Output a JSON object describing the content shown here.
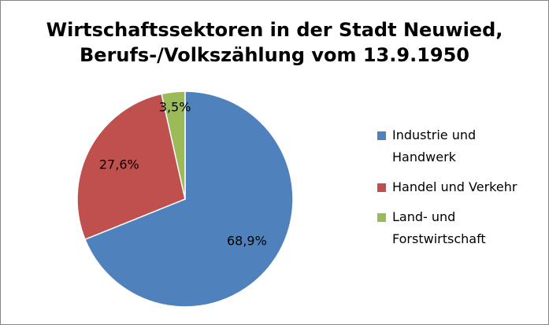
{
  "chart_data": {
    "type": "pie",
    "title": [
      "Wirtschaftssektoren in der Stadt Neuwied,",
      "Berufs-/Volkszählung vom 13.9.1950"
    ],
    "categories": [
      "Industrie und Handwerk",
      "Handel und Verkehr",
      "Land- und Forstwirtschaft"
    ],
    "values": [
      68.9,
      27.6,
      3.5
    ],
    "data_labels": [
      "68,9%",
      "27,6%",
      "3,5%"
    ],
    "legend_labels": [
      [
        "Industrie und",
        "Handwerk"
      ],
      [
        "Handel und Verkehr"
      ],
      [
        "Land- und",
        "Forstwirtschaft"
      ]
    ],
    "colors": [
      "#4F81BD",
      "#C0504D",
      "#9BBB59"
    ],
    "legend_placement": "right"
  }
}
